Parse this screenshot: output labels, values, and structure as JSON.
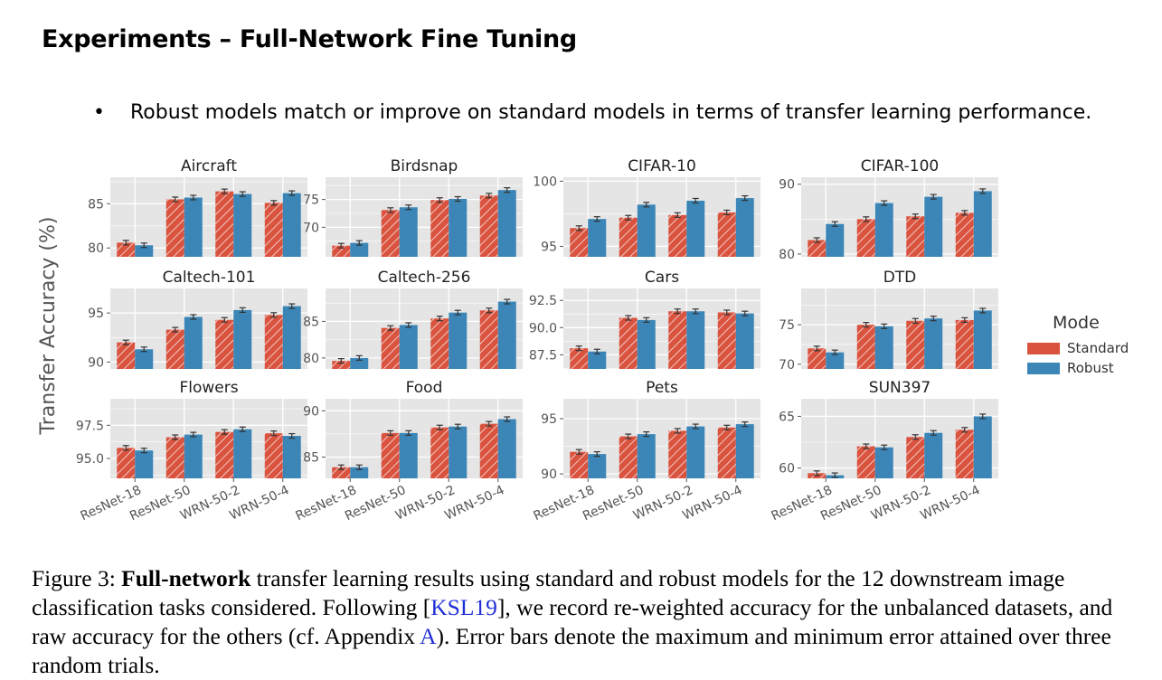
{
  "page": {
    "title": "Experiments – Full-Network Fine Tuning",
    "bullet_symbol": "•",
    "bullet": "Robust models match or improve on standard models in terms of transfer learning performance."
  },
  "caption": {
    "label": "Figure 3:",
    "bold": "Full-network",
    "text1": "transfer learning results using standard and robust models for the 12 downstream image classification tasks considered. Following [",
    "ref1": "KSL19",
    "text2": "], we record re-weighted accuracy for the unbalanced datasets, and raw accuracy for the others (cf. Appendix ",
    "ref2": "A",
    "text3": "). Error bars denote the maximum and minimum error attained over three random trials."
  },
  "colors": {
    "standard": "#d9533f",
    "robust": "#3b86b7",
    "panel_bg": "#e5e5e5",
    "grid": "#ffffff"
  },
  "legend": {
    "title": "Mode",
    "items": [
      "Standard",
      "Robust"
    ]
  },
  "chart_data": {
    "type": "bar",
    "ylabel": "Transfer Accuracy (%)",
    "categories": [
      "ResNet-18",
      "ResNet-50",
      "WRN-50-2",
      "WRN-50-4"
    ],
    "series_names": [
      "Standard",
      "Robust"
    ],
    "panels": [
      {
        "title": "Aircraft",
        "ylim": [
          79,
          88
        ],
        "ticks": [
          80,
          85
        ],
        "tick_labels": [
          "80",
          "85"
        ],
        "standard": [
          80.6,
          85.5,
          86.4,
          85.1
        ],
        "robust": [
          80.3,
          85.7,
          86.1,
          86.2
        ]
      },
      {
        "title": "Birdsnap",
        "ylim": [
          64.7,
          79
        ],
        "ticks": [
          70,
          75
        ],
        "tick_labels": [
          "70",
          "75"
        ],
        "standard": [
          66.7,
          73.1,
          74.9,
          75.7
        ],
        "robust": [
          67.2,
          73.6,
          75.1,
          76.7
        ]
      },
      {
        "title": "CIFAR-10",
        "ylim": [
          94.2,
          100.3
        ],
        "ticks": [
          95,
          100
        ],
        "tick_labels": [
          "95",
          "100"
        ],
        "standard": [
          96.4,
          97.2,
          97.4,
          97.6
        ],
        "robust": [
          97.1,
          98.2,
          98.5,
          98.7
        ]
      },
      {
        "title": "CIFAR-100",
        "ylim": [
          79.6,
          91
        ],
        "ticks": [
          80,
          90
        ],
        "tick_labels": [
          "80",
          "90"
        ],
        "standard": [
          82.0,
          85.0,
          85.4,
          85.9
        ],
        "robust": [
          84.3,
          87.3,
          88.2,
          89.0
        ]
      },
      {
        "title": "Caltech-101",
        "ylim": [
          89.3,
          97.5
        ],
        "ticks": [
          90,
          95
        ],
        "tick_labels": [
          "90",
          "95"
        ],
        "standard": [
          92.0,
          93.3,
          94.3,
          94.8
        ],
        "robust": [
          91.3,
          94.6,
          95.3,
          95.7
        ]
      },
      {
        "title": "Caltech-256",
        "ylim": [
          78.5,
          89.5
        ],
        "ticks": [
          80,
          85
        ],
        "tick_labels": [
          "80",
          "85"
        ],
        "standard": [
          79.6,
          84.1,
          85.4,
          86.5
        ],
        "robust": [
          80.0,
          84.5,
          86.2,
          87.7
        ]
      },
      {
        "title": "Cars",
        "ylim": [
          86.2,
          93.6
        ],
        "ticks": [
          87.5,
          90.0,
          92.5
        ],
        "tick_labels": [
          "87.5",
          "90.0",
          "92.5"
        ],
        "standard": [
          88.1,
          90.9,
          91.5,
          91.4
        ],
        "robust": [
          87.8,
          90.7,
          91.5,
          91.3
        ]
      },
      {
        "title": "DTD",
        "ylim": [
          69.4,
          79.6
        ],
        "ticks": [
          70,
          75
        ],
        "tick_labels": [
          "70",
          "75"
        ],
        "standard": [
          72.0,
          75.0,
          75.5,
          75.6
        ],
        "robust": [
          71.5,
          74.8,
          75.8,
          76.8
        ]
      },
      {
        "title": "Flowers",
        "ylim": [
          93.5,
          99.5
        ],
        "ticks": [
          95.0,
          97.5
        ],
        "tick_labels": [
          "95.0",
          "97.5"
        ],
        "standard": [
          95.8,
          96.6,
          97.0,
          96.9
        ],
        "robust": [
          95.6,
          96.8,
          97.2,
          96.7
        ]
      },
      {
        "title": "Food",
        "ylim": [
          82.7,
          91.3
        ],
        "ticks": [
          85,
          90
        ],
        "tick_labels": [
          "85",
          "90"
        ],
        "standard": [
          83.9,
          87.6,
          88.2,
          88.6
        ],
        "robust": [
          83.9,
          87.6,
          88.3,
          89.1
        ]
      },
      {
        "title": "Pets",
        "ylim": [
          89.6,
          96.8
        ],
        "ticks": [
          90,
          95
        ],
        "tick_labels": [
          "90",
          "95"
        ],
        "standard": [
          92.0,
          93.4,
          93.9,
          94.2
        ],
        "robust": [
          91.8,
          93.6,
          94.3,
          94.5
        ]
      },
      {
        "title": "SUN397",
        "ylim": [
          59.0,
          66.7
        ],
        "ticks": [
          60,
          65
        ],
        "tick_labels": [
          "60",
          "65"
        ],
        "standard": [
          59.5,
          62.1,
          63.0,
          63.7
        ],
        "robust": [
          59.3,
          62.0,
          63.4,
          65.0
        ]
      }
    ]
  }
}
